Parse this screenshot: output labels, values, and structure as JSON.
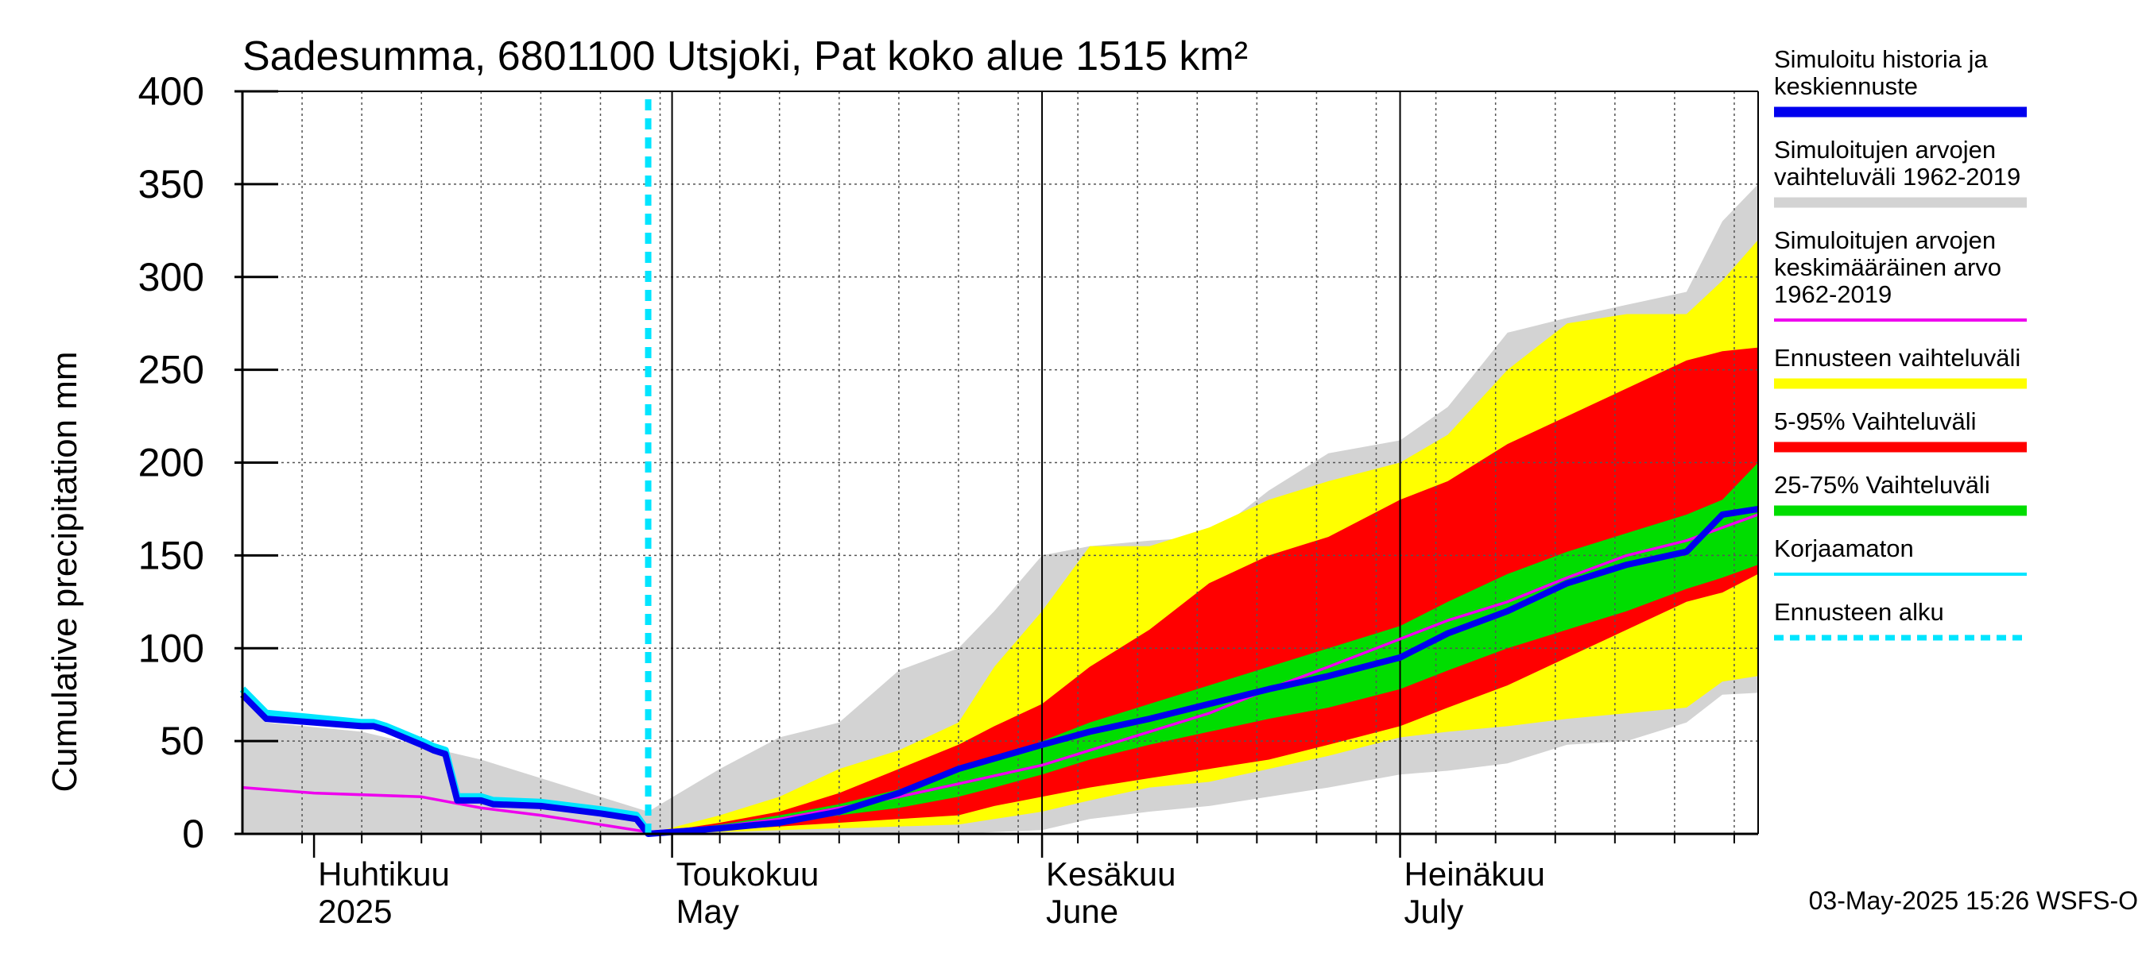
{
  "chart_data": {
    "type": "area",
    "title": "Sadesumma, 6801100 Utsjoki, Pat koko alue 1515 km²",
    "ylabel": "Cumulative precipitation   mm",
    "xlabel": "",
    "ylim": [
      0,
      400
    ],
    "yticks": [
      "0",
      "50",
      "100",
      "150",
      "200",
      "250",
      "300",
      "350",
      "400"
    ],
    "xlim": [
      "2025-03-26",
      "2025-07-31"
    ],
    "grid": true,
    "month_labels": [
      {
        "date": "2025-04-01",
        "line1": "Huhtikuu",
        "line2": "2025"
      },
      {
        "date": "2025-05-01",
        "line1": "Toukokuu",
        "line2": "May"
      },
      {
        "date": "2025-06-01",
        "line1": "Kesäkuu",
        "line2": "June"
      },
      {
        "date": "2025-07-01",
        "line1": "Heinäkuu",
        "line2": "July"
      }
    ],
    "forecast_start": "2025-04-29",
    "series": [
      {
        "name": "Simuloitujen arvojen vaihteluväli 1962-2019",
        "color": "#d3d3d3",
        "kind": "band",
        "x": [
          "2025-03-26",
          "2025-03-28",
          "2025-04-05",
          "2025-04-15",
          "2025-04-25",
          "2025-04-29",
          "2025-05-05",
          "2025-05-10",
          "2025-05-15",
          "2025-05-20",
          "2025-05-25",
          "2025-05-28",
          "2025-06-01",
          "2025-06-05",
          "2025-06-10",
          "2025-06-15",
          "2025-06-20",
          "2025-06-25",
          "2025-07-01",
          "2025-07-05",
          "2025-07-10",
          "2025-07-15",
          "2025-07-20",
          "2025-07-25",
          "2025-07-28",
          "2025-07-31"
        ],
        "low": [
          0,
          0,
          0,
          0,
          0,
          0,
          0,
          0,
          0,
          0,
          0,
          1,
          2,
          8,
          12,
          15,
          20,
          25,
          32,
          34,
          38,
          48,
          50,
          60,
          75,
          76
        ],
        "high": [
          75,
          60,
          55,
          40,
          20,
          12,
          35,
          52,
          60,
          88,
          100,
          120,
          150,
          155,
          158,
          160,
          185,
          205,
          212,
          230,
          270,
          278,
          285,
          292,
          330,
          350
        ]
      },
      {
        "name": "Ennusteen vaihteluväli",
        "color": "#ffff00",
        "kind": "band",
        "x": [
          "2025-04-29",
          "2025-05-05",
          "2025-05-10",
          "2025-05-15",
          "2025-05-20",
          "2025-05-25",
          "2025-05-28",
          "2025-06-01",
          "2025-06-05",
          "2025-06-10",
          "2025-06-15",
          "2025-06-20",
          "2025-06-25",
          "2025-07-01",
          "2025-07-05",
          "2025-07-10",
          "2025-07-15",
          "2025-07-20",
          "2025-07-25",
          "2025-07-28",
          "2025-07-31"
        ],
        "low": [
          0,
          1,
          2,
          3,
          4,
          5,
          8,
          12,
          18,
          25,
          28,
          35,
          42,
          52,
          55,
          58,
          62,
          65,
          68,
          82,
          85
        ],
        "high": [
          0,
          10,
          20,
          35,
          45,
          60,
          90,
          120,
          155,
          155,
          165,
          180,
          190,
          200,
          215,
          250,
          275,
          280,
          280,
          298,
          320
        ]
      },
      {
        "name": "5-95% Vaihteluväli",
        "color": "#ff0000",
        "kind": "band",
        "x": [
          "2025-04-29",
          "2025-05-05",
          "2025-05-10",
          "2025-05-15",
          "2025-05-20",
          "2025-05-25",
          "2025-05-28",
          "2025-06-01",
          "2025-06-05",
          "2025-06-10",
          "2025-06-15",
          "2025-06-20",
          "2025-06-25",
          "2025-07-01",
          "2025-07-05",
          "2025-07-10",
          "2025-07-15",
          "2025-07-20",
          "2025-07-25",
          "2025-07-28",
          "2025-07-31"
        ],
        "low": [
          0,
          2,
          4,
          6,
          8,
          10,
          15,
          20,
          25,
          30,
          35,
          40,
          48,
          58,
          68,
          80,
          95,
          110,
          125,
          130,
          140
        ],
        "high": [
          0,
          6,
          12,
          22,
          35,
          48,
          58,
          70,
          90,
          110,
          135,
          150,
          160,
          180,
          190,
          210,
          225,
          240,
          255,
          260,
          262
        ]
      },
      {
        "name": "25-75% Vaihteluväli",
        "color": "#00dd00",
        "kind": "band",
        "x": [
          "2025-04-29",
          "2025-05-05",
          "2025-05-10",
          "2025-05-15",
          "2025-05-20",
          "2025-05-25",
          "2025-05-28",
          "2025-06-01",
          "2025-06-05",
          "2025-06-10",
          "2025-06-15",
          "2025-06-20",
          "2025-06-25",
          "2025-07-01",
          "2025-07-05",
          "2025-07-10",
          "2025-07-15",
          "2025-07-20",
          "2025-07-25",
          "2025-07-28",
          "2025-07-31"
        ],
        "low": [
          0,
          3,
          6,
          10,
          14,
          20,
          25,
          32,
          40,
          48,
          55,
          62,
          68,
          78,
          88,
          100,
          110,
          120,
          132,
          138,
          145
        ],
        "high": [
          0,
          5,
          10,
          16,
          24,
          34,
          40,
          50,
          60,
          70,
          80,
          90,
          100,
          112,
          125,
          140,
          152,
          162,
          172,
          180,
          200
        ]
      },
      {
        "name": "Simuloitujen arvojen keskimääräinen arvo 1962-2019",
        "color": "#ee00ee",
        "kind": "line",
        "x": [
          "2025-03-26",
          "2025-04-01",
          "2025-04-10",
          "2025-04-15",
          "2025-04-20",
          "2025-04-25",
          "2025-04-29",
          "2025-05-05",
          "2025-05-10",
          "2025-05-15",
          "2025-05-20",
          "2025-05-25",
          "2025-06-01",
          "2025-06-05",
          "2025-06-10",
          "2025-06-15",
          "2025-06-20",
          "2025-06-25",
          "2025-07-01",
          "2025-07-05",
          "2025-07-10",
          "2025-07-15",
          "2025-07-20",
          "2025-07-25",
          "2025-07-31"
        ],
        "values": [
          25,
          22,
          20,
          14,
          10,
          5,
          1,
          4,
          8,
          14,
          20,
          27,
          37,
          45,
          55,
          65,
          78,
          90,
          105,
          115,
          125,
          138,
          150,
          158,
          172
        ]
      },
      {
        "name": "Korjaamaton",
        "color": "#00e5ff",
        "kind": "line",
        "x": [
          "2025-03-26",
          "2025-03-28",
          "2025-04-05",
          "2025-04-06",
          "2025-04-07",
          "2025-04-10",
          "2025-04-11",
          "2025-04-12",
          "2025-04-13",
          "2025-04-15",
          "2025-04-16",
          "2025-04-20",
          "2025-04-25",
          "2025-04-26",
          "2025-04-28",
          "2025-04-29"
        ],
        "values": [
          78,
          65,
          60,
          60,
          58,
          50,
          47,
          45,
          20,
          20,
          18,
          17,
          13,
          12,
          10,
          1
        ]
      },
      {
        "name": "Simuloitu historia ja keskiennuste",
        "color": "#0000ee",
        "kind": "line",
        "x": [
          "2025-03-26",
          "2025-03-28",
          "2025-04-05",
          "2025-04-06",
          "2025-04-07",
          "2025-04-10",
          "2025-04-11",
          "2025-04-12",
          "2025-04-13",
          "2025-04-15",
          "2025-04-16",
          "2025-04-20",
          "2025-04-25",
          "2025-04-26",
          "2025-04-28",
          "2025-04-29",
          "2025-05-05",
          "2025-05-10",
          "2025-05-15",
          "2025-05-20",
          "2025-05-25",
          "2025-06-01",
          "2025-06-05",
          "2025-06-10",
          "2025-06-15",
          "2025-06-20",
          "2025-06-25",
          "2025-07-01",
          "2025-07-05",
          "2025-07-10",
          "2025-07-15",
          "2025-07-20",
          "2025-07-25",
          "2025-07-28",
          "2025-07-31"
        ],
        "values": [
          75,
          62,
          58,
          58,
          56,
          48,
          45,
          43,
          18,
          18,
          16,
          15,
          11,
          10,
          8,
          0,
          3,
          6,
          12,
          22,
          35,
          48,
          55,
          62,
          70,
          78,
          85,
          95,
          108,
          120,
          135,
          145,
          152,
          172,
          175
        ]
      },
      {
        "name": "Ennusteen alku",
        "color": "#00e5ff",
        "kind": "marker",
        "date": "2025-04-29"
      }
    ]
  },
  "legend": {
    "items": [
      {
        "lines": [
          "Simuloitu historia ja",
          "keskiennuste"
        ],
        "color": "#0000ee",
        "style": "thick"
      },
      {
        "lines": [
          "Simuloitujen arvojen",
          "vaihteluväli 1962-2019"
        ],
        "color": "#d3d3d3",
        "style": "thick"
      },
      {
        "lines": [
          "Simuloitujen arvojen",
          "keskimääräinen arvo",
          "   1962-2019"
        ],
        "color": "#ee00ee",
        "style": "thin"
      },
      {
        "lines": [
          "Ennusteen vaihteluväli"
        ],
        "color": "#ffff00",
        "style": "thick"
      },
      {
        "lines": [
          "5-95% Vaihteluväli"
        ],
        "color": "#ff0000",
        "style": "thick"
      },
      {
        "lines": [
          "25-75% Vaihteluväli"
        ],
        "color": "#00dd00",
        "style": "thick"
      },
      {
        "lines": [
          "Korjaamaton"
        ],
        "color": "#00e5ff",
        "style": "thin"
      },
      {
        "lines": [
          "Ennusteen alku"
        ],
        "color": "#00e5ff",
        "style": "dashed"
      }
    ]
  },
  "footer": "03-May-2025 15:26 WSFS-O"
}
